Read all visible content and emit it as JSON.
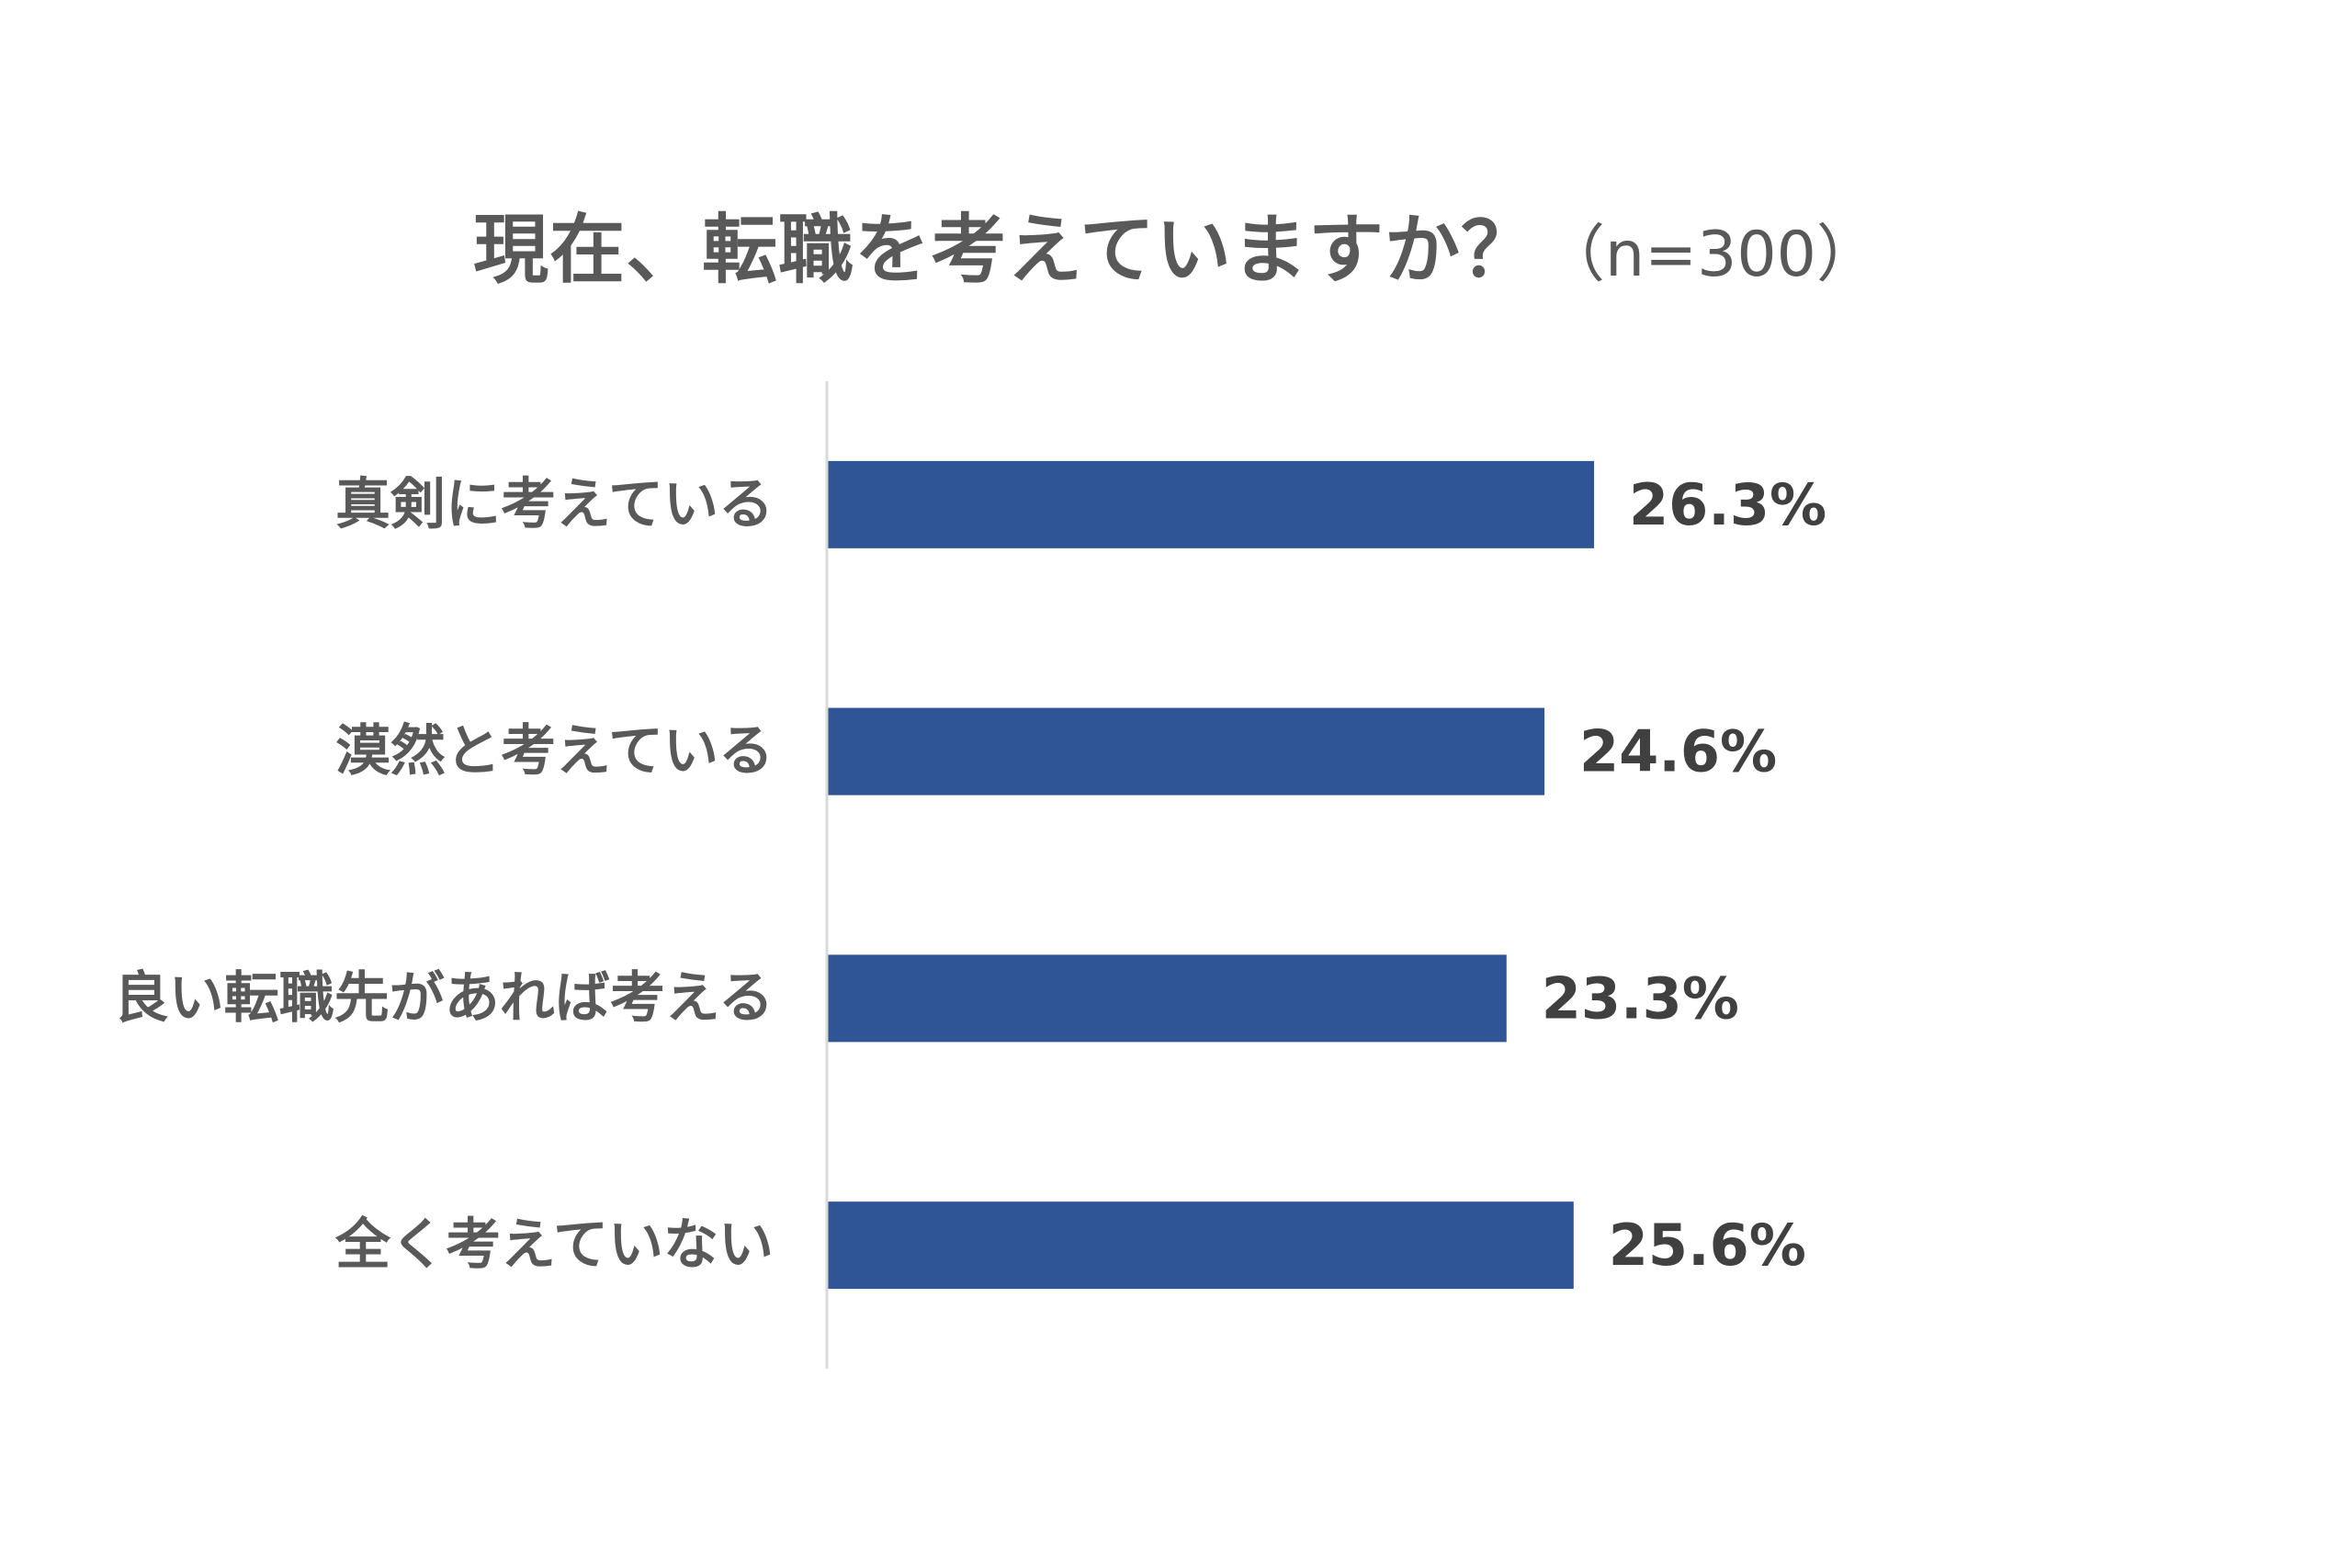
{
  "chart_data": {
    "type": "bar",
    "orientation": "horizontal",
    "title": "現在、転職を考えていますか？",
    "subtitle": "（n=300）",
    "categories": [
      "真剣に考えている",
      "漠然と考えている",
      "良い転職先があれば考える",
      "全く考えていない"
    ],
    "values": [
      26.3,
      24.6,
      23.3,
      25.6
    ],
    "data_labels": [
      "26.3%",
      "24.6%",
      "23.3%",
      "25.6%"
    ],
    "unit": "%",
    "xlim": [
      0,
      40
    ],
    "grid": false,
    "legend": "none",
    "bar_color": "#2F5597"
  }
}
